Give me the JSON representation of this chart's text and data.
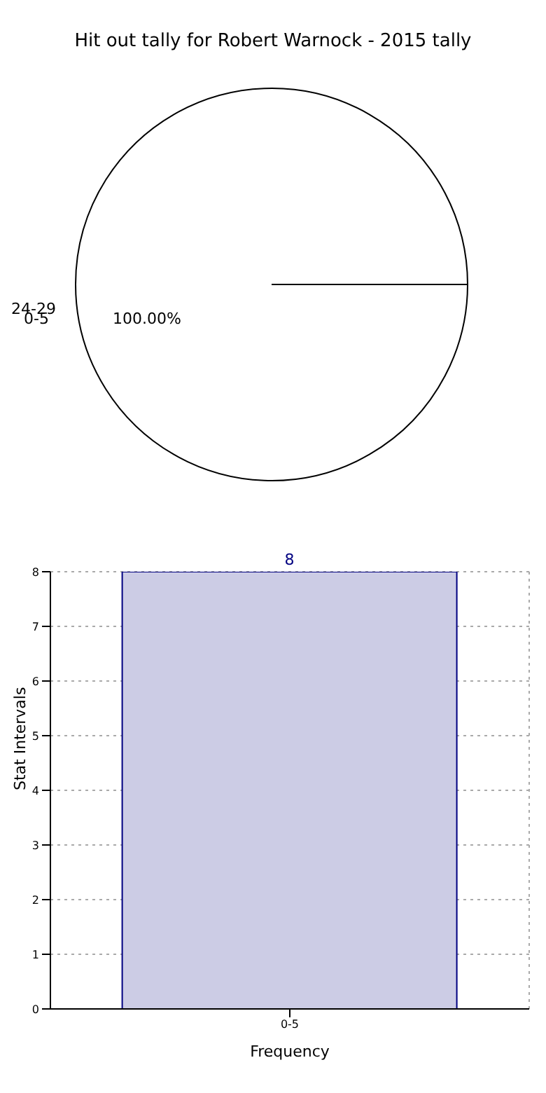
{
  "chart_data": [
    {
      "type": "pie",
      "title": "Hit out tally for Robert Warnock - 2015 tally",
      "categories": [
        "0-5"
      ],
      "values": [
        100
      ],
      "colors": [
        "#ffffff"
      ],
      "value_labels": [
        "100.00%"
      ],
      "annotations": [
        "24-29"
      ]
    },
    {
      "type": "bar",
      "categories": [
        "0-5"
      ],
      "values": [
        8
      ],
      "color": "#ccccE5",
      "xlabel": "Frequency",
      "ylabel": "Stat Intervals",
      "ylim": [
        0,
        8
      ],
      "yticks": [
        0,
        1,
        2,
        3,
        4,
        5,
        6,
        7,
        8
      ],
      "grid": true,
      "data_labels": true
    }
  ]
}
